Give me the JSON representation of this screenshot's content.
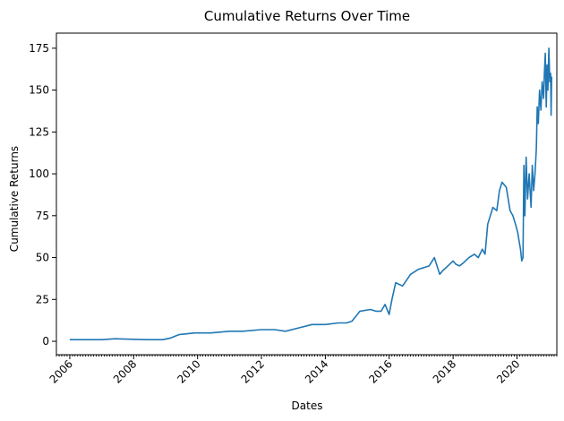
{
  "chart_data": {
    "type": "line",
    "title": "Cumulative Returns Over Time",
    "xlabel": "Dates",
    "ylabel": "Cumulative Returns",
    "xlim": [
      "2005-08-01",
      "2021-04-01"
    ],
    "ylim": [
      -8,
      184
    ],
    "grid": false,
    "legend": "none",
    "x_ticks": [
      "2006",
      "2008",
      "2010",
      "2012",
      "2014",
      "2016",
      "2018",
      "2020"
    ],
    "y_ticks": [
      0,
      25,
      50,
      75,
      100,
      125,
      150,
      175
    ],
    "series": [
      {
        "color": "#1f77b4",
        "x": [
          "2006-01-01",
          "2007-01-01",
          "2007-06-01",
          "2008-06-01",
          "2008-12-01",
          "2009-03-01",
          "2009-06-01",
          "2009-12-01",
          "2010-06-01",
          "2011-01-01",
          "2011-06-01",
          "2012-01-01",
          "2012-06-01",
          "2012-10-01",
          "2013-03-01",
          "2013-08-01",
          "2014-01-01",
          "2014-06-01",
          "2014-09-01",
          "2014-11-01",
          "2015-02-01",
          "2015-06-01",
          "2015-08-01",
          "2015-10-01",
          "2015-11-15",
          "2016-01-01",
          "2016-02-01",
          "2016-03-15",
          "2016-06-01",
          "2016-09-01",
          "2016-12-01",
          "2017-02-01",
          "2017-04-01",
          "2017-06-01",
          "2017-08-01",
          "2017-09-01",
          "2017-11-01",
          "2018-01-01",
          "2018-02-01",
          "2018-03-15",
          "2018-05-01",
          "2018-07-01",
          "2018-09-01",
          "2018-10-15",
          "2018-12-01",
          "2019-01-01",
          "2019-02-01",
          "2019-04-01",
          "2019-05-15",
          "2019-06-15",
          "2019-07-15",
          "2019-09-01",
          "2019-10-15",
          "2019-11-15",
          "2019-12-15",
          "2020-01-10",
          "2020-01-25",
          "2020-02-10",
          "2020-02-25",
          "2020-03-10",
          "2020-03-20",
          "2020-04-01",
          "2020-04-15",
          "2020-05-01",
          "2020-05-20",
          "2020-06-10",
          "2020-06-25",
          "2020-07-10",
          "2020-07-25",
          "2020-08-10",
          "2020-08-20",
          "2020-09-01",
          "2020-09-15",
          "2020-10-01",
          "2020-10-15",
          "2020-11-01",
          "2020-11-10",
          "2020-11-20",
          "2020-12-01",
          "2020-12-10",
          "2020-12-20",
          "2020-12-31",
          "2021-01-10",
          "2021-01-20",
          "2021-01-25",
          "2021-02-01"
        ],
        "y": [
          1,
          1,
          1.5,
          1,
          1,
          2,
          4,
          5,
          5,
          6,
          6,
          7,
          7,
          6,
          8,
          10,
          10,
          11,
          11,
          12,
          18,
          19,
          18,
          18,
          22,
          16,
          25,
          35,
          33,
          40,
          43,
          44,
          45,
          50,
          40,
          42,
          45,
          48,
          46,
          45,
          47,
          50,
          52,
          50,
          55,
          52,
          70,
          80,
          78,
          90,
          95,
          92,
          78,
          75,
          70,
          65,
          60,
          55,
          48,
          50,
          105,
          75,
          110,
          85,
          100,
          80,
          105,
          90,
          100,
          115,
          140,
          130,
          150,
          138,
          155,
          145,
          160,
          172,
          140,
          165,
          150,
          175,
          155,
          160,
          135,
          158
        ]
      }
    ]
  }
}
